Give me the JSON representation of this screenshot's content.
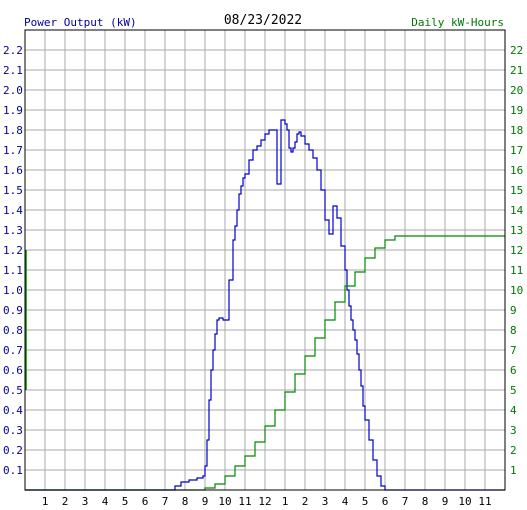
{
  "chart_data": {
    "type": "line",
    "title": "08/23/2022",
    "left_axis_label": "Power Output (kW)",
    "right_axis_label": "Daily kW-Hours",
    "colors": {
      "power": "#0000cc",
      "energy": "#008800",
      "grid": "#aaaaaa",
      "axis": "#000000",
      "left_text": "#000099",
      "right_text": "#007700"
    },
    "x_ticks": [
      "1",
      "2",
      "3",
      "4",
      "5",
      "6",
      "7",
      "8",
      "9",
      "10",
      "11",
      "12",
      "1",
      "2",
      "3",
      "4",
      "5",
      "6",
      "7",
      "8",
      "9",
      "10",
      "11"
    ],
    "x_range_hours": [
      0,
      24
    ],
    "y_left_range": [
      0,
      2.3
    ],
    "y_left_ticks": [
      "0.1",
      "0.2",
      "0.3",
      "0.4",
      "0.5",
      "0.6",
      "0.7",
      "0.8",
      "0.9",
      "1.0",
      "1.1",
      "1.2",
      "1.3",
      "1.4",
      "1.5",
      "1.6",
      "1.7",
      "1.8",
      "1.9",
      "2.0",
      "2.1",
      "2.2"
    ],
    "y_right_range": [
      0,
      23
    ],
    "y_right_ticks": [
      "1",
      "2",
      "3",
      "4",
      "5",
      "6",
      "7",
      "8",
      "9",
      "10",
      "11",
      "12",
      "13",
      "14",
      "15",
      "16",
      "17",
      "18",
      "19",
      "20",
      "21",
      "22"
    ],
    "grid": true,
    "series": [
      {
        "name": "Power Output (kW)",
        "axis": "left",
        "x": [
          0,
          7.2,
          7.5,
          7.8,
          8.2,
          8.6,
          8.9,
          9.0,
          9.1,
          9.2,
          9.3,
          9.4,
          9.5,
          9.6,
          9.7,
          9.8,
          9.9,
          10.0,
          10.2,
          10.4,
          10.5,
          10.6,
          10.7,
          10.8,
          10.9,
          11.0,
          11.2,
          11.4,
          11.6,
          11.8,
          12.0,
          12.2,
          12.4,
          12.6,
          12.8,
          13.0,
          13.1,
          13.2,
          13.3,
          13.4,
          13.5,
          13.6,
          13.7,
          13.8,
          14.0,
          14.2,
          14.4,
          14.6,
          14.8,
          15.0,
          15.2,
          15.4,
          15.6,
          15.8,
          16.0,
          16.1,
          16.2,
          16.3,
          16.4,
          16.5,
          16.6,
          16.7,
          16.8,
          16.9,
          17.0,
          17.2,
          17.4,
          17.6,
          17.8,
          18.0,
          18.2,
          18.4,
          18.6,
          18.8,
          19.0,
          19.2,
          19.4,
          19.5,
          19.6,
          19.7,
          19.8,
          24
        ],
        "values": [
          0,
          0,
          0.02,
          0.04,
          0.05,
          0.06,
          0.07,
          0.12,
          0.25,
          0.45,
          0.6,
          0.7,
          0.78,
          0.85,
          0.86,
          0.86,
          0.85,
          0.85,
          1.05,
          1.25,
          1.32,
          1.4,
          1.48,
          1.52,
          1.56,
          1.58,
          1.65,
          1.7,
          1.72,
          1.75,
          1.78,
          1.8,
          1.8,
          1.53,
          1.85,
          1.83,
          1.8,
          1.71,
          1.69,
          1.71,
          1.74,
          1.78,
          1.79,
          1.77,
          1.73,
          1.7,
          1.66,
          1.6,
          1.5,
          1.35,
          1.28,
          1.42,
          1.36,
          1.22,
          1.1,
          1.0,
          0.92,
          0.85,
          0.8,
          0.75,
          0.68,
          0.6,
          0.52,
          0.42,
          0.35,
          0.25,
          0.15,
          0.07,
          0.02,
          0,
          0,
          0,
          0,
          0,
          0,
          0,
          0,
          0,
          0,
          0,
          0,
          0
        ]
      },
      {
        "name": "Daily kW-Hours",
        "axis": "right",
        "x": [
          0,
          8.4,
          9.0,
          9.5,
          10.0,
          10.5,
          11.0,
          11.5,
          12.0,
          12.5,
          13.0,
          13.5,
          14.0,
          14.5,
          15.0,
          15.5,
          16.0,
          16.5,
          17.0,
          17.5,
          18.0,
          18.5,
          19.0,
          19.5,
          20.0,
          24
        ],
        "values": [
          0,
          0,
          0.1,
          0.3,
          0.7,
          1.2,
          1.7,
          2.4,
          3.2,
          4.0,
          4.9,
          5.8,
          6.7,
          7.6,
          8.5,
          9.4,
          10.2,
          10.9,
          11.6,
          12.1,
          12.5,
          12.7,
          12.7,
          12.7,
          12.7,
          12.7
        ]
      }
    ]
  }
}
